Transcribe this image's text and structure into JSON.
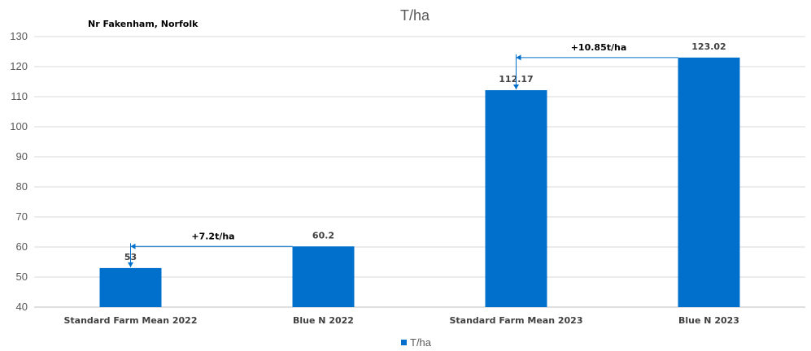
{
  "chart_data": {
    "type": "bar",
    "title": "T/ha",
    "subtitle": "Nr Fakenham, Norfolk",
    "categories": [
      "Standard Farm Mean 2022",
      "Blue N 2022",
      "Standard Farm Mean 2023",
      "Blue N 2023"
    ],
    "series": [
      {
        "name": "T/ha",
        "values": [
          53,
          60.2,
          112.17,
          123.02
        ],
        "color": "#0070CC"
      }
    ],
    "data_labels": [
      "53",
      "60.2",
      "112.17",
      "123.02"
    ],
    "yticks": [
      "40",
      "50",
      "60",
      "70",
      "80",
      "90",
      "100",
      "110",
      "120",
      "130"
    ],
    "ylim": [
      40,
      130
    ],
    "grid": true,
    "legend": "bottom",
    "annotations": [
      {
        "text": "+7.2t/ha",
        "from_index": 1,
        "to_index": 0
      },
      {
        "text": "+10.85t/ha",
        "from_index": 3,
        "to_index": 2
      }
    ],
    "colors": {
      "bar": "#0070CC",
      "grid": "#D9D9D9",
      "axis": "#BFBFBF",
      "arrow": "#0070CC"
    }
  }
}
